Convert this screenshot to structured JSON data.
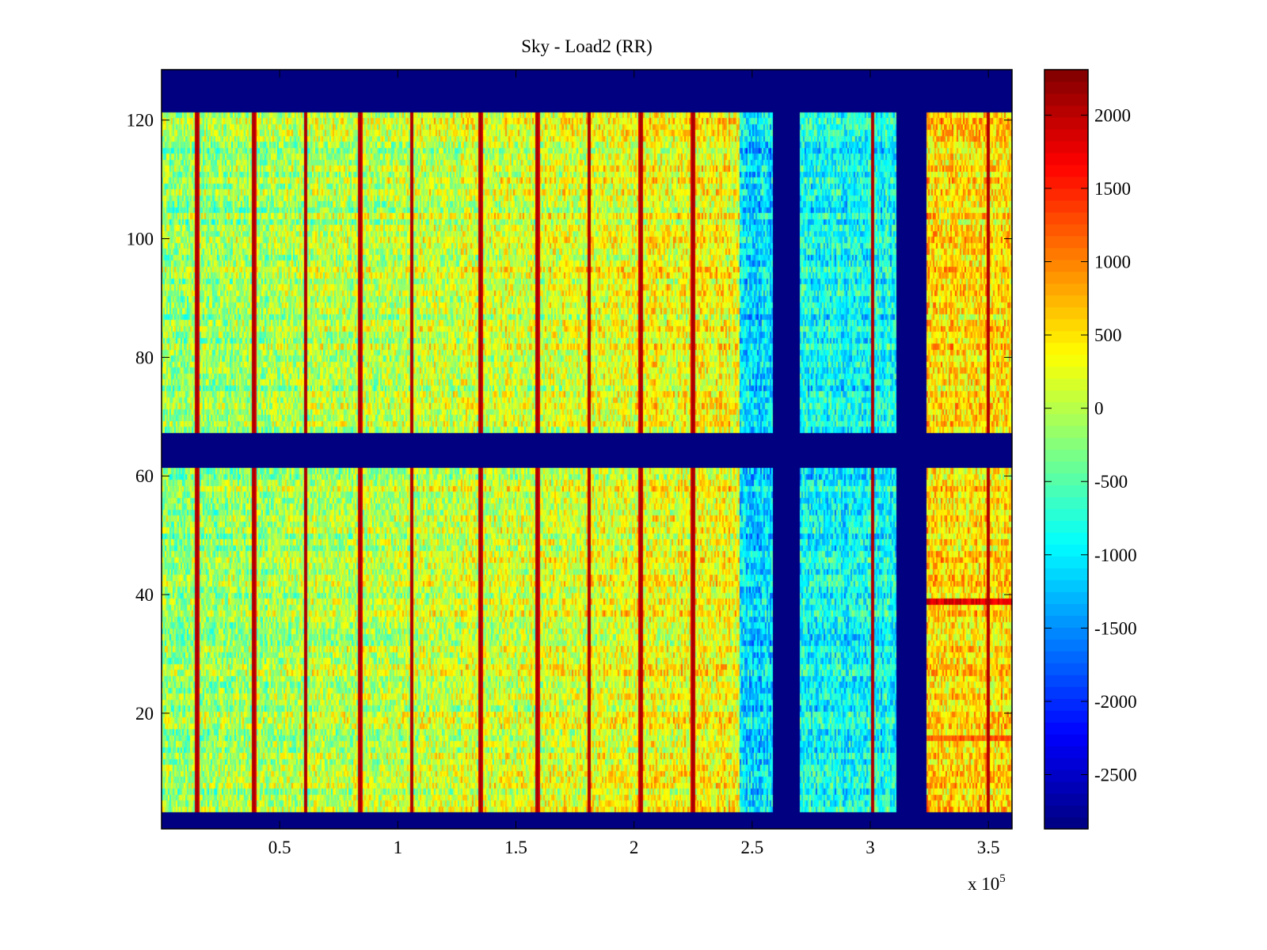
{
  "chart_data": {
    "type": "heatmap",
    "title": "Sky - Load2 (RR)",
    "xlabel": "",
    "ylabel": "",
    "x_multiplier_label": "x 10",
    "x_multiplier_exponent": "5",
    "xlim": [
      0,
      360000
    ],
    "ylim": [
      0.5,
      128.5
    ],
    "x_ticks": [
      50000,
      100000,
      150000,
      200000,
      250000,
      300000,
      350000
    ],
    "x_tick_labels": [
      "0.5",
      "1",
      "1.5",
      "2",
      "2.5",
      "3",
      "3.5"
    ],
    "y_ticks": [
      20,
      40,
      60,
      80,
      100,
      120
    ],
    "y_tick_labels": [
      "20",
      "40",
      "60",
      "80",
      "100",
      "120"
    ],
    "colormap": "jet",
    "clim": [
      -2870,
      2310
    ],
    "colorbar": {
      "ticks": [
        2000,
        1500,
        1000,
        500,
        0,
        -500,
        -1000,
        -1500,
        -2000,
        -2500
      ],
      "tick_labels": [
        "2000",
        "1500",
        "1000",
        "500",
        "0",
        "-500",
        "-1000",
        "-1500",
        "-2000",
        "-2500"
      ],
      "location": "right"
    },
    "masked_value": -2870,
    "masked_row_ranges": [
      [
        121.5,
        128.5
      ],
      [
        61.5,
        67.5
      ],
      [
        0.5,
        3.5
      ]
    ],
    "masked_column_ranges": [
      [
        259000,
        270500
      ],
      [
        311000,
        323500
      ]
    ],
    "column_segments": [
      {
        "x_range": [
          0,
          245000
        ],
        "mean_value": 150,
        "description_level": "mixed"
      },
      {
        "x_range": [
          245000,
          259000
        ],
        "mean_value": -1100
      },
      {
        "x_range": [
          270500,
          311000
        ],
        "mean_value": -900
      },
      {
        "x_range": [
          323500,
          360000
        ],
        "mean_value": 500
      }
    ],
    "hot_columns_x": [
      15000,
      39000,
      61000,
      84000,
      106000,
      135000,
      159000,
      181000,
      203000,
      225000,
      301000,
      350000
    ],
    "hot_column_value": 2200,
    "hot_row_bands": [
      {
        "y": 39,
        "x_range": [
          323500,
          360000
        ],
        "value": 1800
      },
      {
        "y": 16,
        "x_range": [
          323500,
          360000
        ],
        "value": 1200
      }
    ],
    "grid": false
  }
}
